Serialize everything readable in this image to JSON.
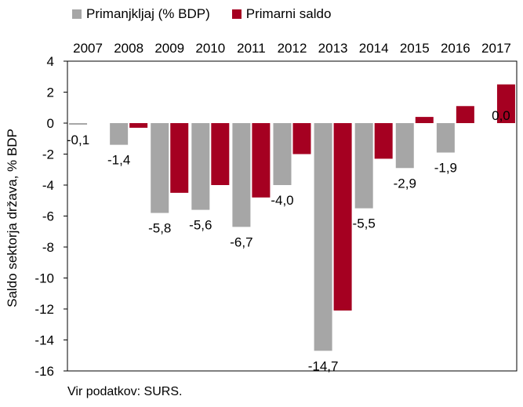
{
  "chart_data": {
    "type": "bar",
    "categories": [
      "2007",
      "2008",
      "2009",
      "2010",
      "2011",
      "2012",
      "2013",
      "2014",
      "2015",
      "2016",
      "2017"
    ],
    "series": [
      {
        "name": "Primanjkljaj (% BDP)",
        "color": "#a6a6a6",
        "values": [
          -0.1,
          -1.4,
          -5.8,
          -5.6,
          -6.7,
          -4.0,
          -14.7,
          -5.5,
          -2.9,
          -1.9,
          0.0
        ]
      },
      {
        "name": "Primarni saldo",
        "color": "#a50021",
        "values": [
          0.0,
          -0.3,
          -4.5,
          -4.0,
          -4.8,
          -2.0,
          -12.1,
          -2.3,
          0.4,
          1.1,
          2.5
        ]
      }
    ],
    "data_labels": [
      "-0,1",
      "-1,4",
      "-5,8",
      "-5,6",
      "-6,7",
      "-4,0",
      "-14,7",
      "-5,5",
      "-2,9",
      "-1,9",
      "0,0"
    ],
    "ylabel": "Saldo sektorja država, % BDP",
    "ylim": [
      -16,
      4
    ],
    "yticks": [
      4,
      2,
      0,
      -2,
      -4,
      -6,
      -8,
      -10,
      -12,
      -14,
      -16
    ],
    "ytick_labels": [
      "4",
      "2",
      "0",
      "-2",
      "-4",
      "-6",
      "-8",
      "-10",
      "-12",
      "-14",
      "-16"
    ],
    "xaxis_position": "top",
    "legend": "top"
  },
  "source": "Vir podatkov: SURS."
}
